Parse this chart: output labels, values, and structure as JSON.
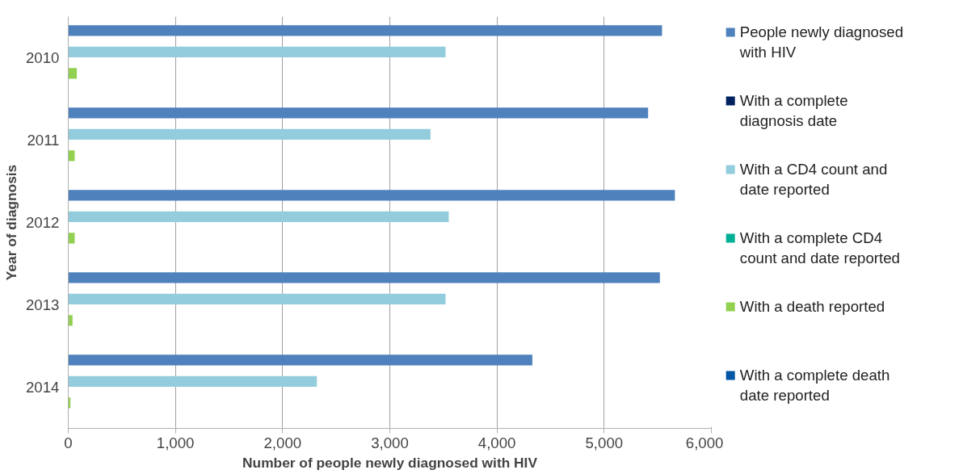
{
  "chart_data": {
    "type": "bar",
    "orientation": "horizontal",
    "xlabel": "Number of people newly diagnosed with HIV",
    "ylabel": "Year of diagnosis",
    "categories": [
      "2010",
      "2011",
      "2012",
      "2013",
      "2014"
    ],
    "series": [
      {
        "name": "People newly diagnosed with HIV",
        "color": "#4f81bd",
        "values": [
          5540,
          5410,
          5660,
          5520,
          4330
        ]
      },
      {
        "name": "With a complete diagnosis date",
        "color": "#002060",
        "values": [
          null,
          null,
          null,
          null,
          null
        ]
      },
      {
        "name": "With a CD4 count and date reported",
        "color": "#93cddd",
        "values": [
          3520,
          3380,
          3550,
          3520,
          2320
        ]
      },
      {
        "name": "With a complete CD4 count and date reported",
        "color": "#00b096",
        "values": [
          null,
          null,
          null,
          null,
          null
        ]
      },
      {
        "name": "With a death reported",
        "color": "#92d050",
        "values": [
          80,
          60,
          60,
          40,
          20
        ]
      },
      {
        "name": "With a complete death date reported",
        "color": "#0055a5",
        "values": [
          null,
          null,
          null,
          null,
          null
        ]
      }
    ],
    "xlim": [
      0,
      6000
    ],
    "xticks": [
      0,
      {
        "value": 1000,
        "label": "1,000"
      },
      {
        "value": 2000,
        "label": "2,000"
      },
      {
        "value": 3000,
        "label": "3,000"
      },
      {
        "value": 4000,
        "label": "4,000"
      },
      {
        "value": 5000,
        "label": "5,000"
      },
      {
        "value": 6000,
        "label": "6,000"
      }
    ],
    "grid": "x",
    "legend": "right"
  }
}
